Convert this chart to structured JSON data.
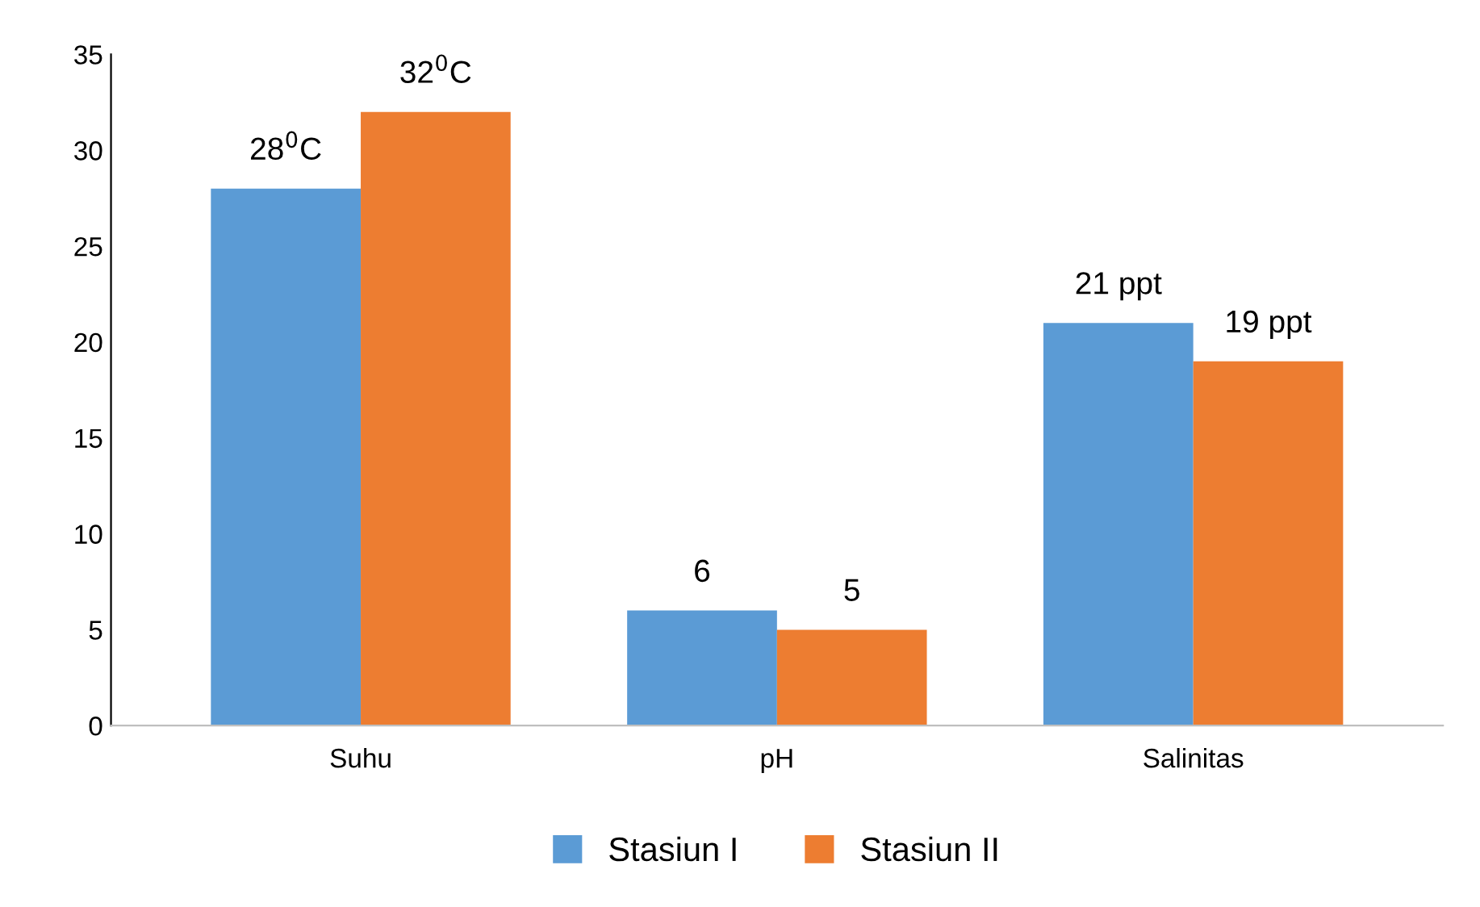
{
  "chart_data": {
    "type": "bar",
    "categories": [
      "Suhu",
      "pH",
      "Salinitas"
    ],
    "series": [
      {
        "name": "Stasiun I",
        "color": "#5b9bd5",
        "values": [
          28,
          6,
          21
        ],
        "value_labels": [
          "28$^{0}$C",
          "6",
          "21 ppt"
        ]
      },
      {
        "name": "Stasiun II",
        "color": "#ed7d31",
        "values": [
          32,
          5,
          19
        ],
        "value_labels": [
          "32$^{0}$C",
          "5",
          "19 ppt"
        ]
      }
    ],
    "ylim": [
      0,
      35
    ],
    "yticks": [
      0,
      5,
      10,
      15,
      20,
      25,
      30,
      35
    ],
    "grid": false,
    "legend": "bottom"
  }
}
